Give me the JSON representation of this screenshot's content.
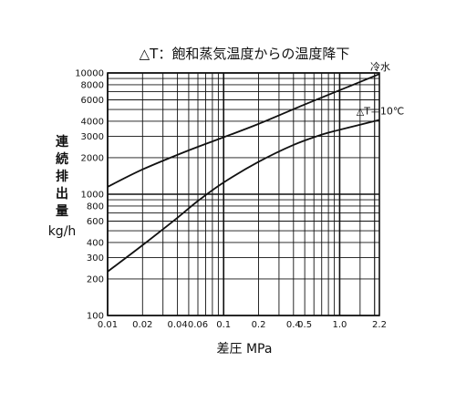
{
  "chart_data": {
    "type": "line",
    "title": "△T：飽和蒸気温度からの温度降下",
    "xlabel": "差圧 MPa",
    "ylabel_lines": [
      "連",
      "続",
      "排",
      "出",
      "量"
    ],
    "ylabel_unit": "kg/h",
    "x_scale": "log",
    "y_scale": "log",
    "xlim": [
      0.01,
      2.2
    ],
    "ylim": [
      100,
      10000
    ],
    "grid": true,
    "x_ticks": [
      {
        "value": 0.01,
        "label": "0.01"
      },
      {
        "value": 0.02,
        "label": "0.02"
      },
      {
        "value": 0.04,
        "label": "0.04"
      },
      {
        "value": 0.06,
        "label": "0.06"
      },
      {
        "value": 0.1,
        "label": "0.1"
      },
      {
        "value": 0.2,
        "label": "0.2"
      },
      {
        "value": 0.4,
        "label": "0.4"
      },
      {
        "value": 0.5,
        "label": "0.5"
      },
      {
        "value": 1.0,
        "label": "1.0"
      },
      {
        "value": 2.2,
        "label": "2.2"
      }
    ],
    "y_ticks": [
      {
        "value": 100,
        "label": "100"
      },
      {
        "value": 200,
        "label": "200"
      },
      {
        "value": 300,
        "label": "300"
      },
      {
        "value": 400,
        "label": "400"
      },
      {
        "value": 600,
        "label": "600"
      },
      {
        "value": 800,
        "label": "800"
      },
      {
        "value": 1000,
        "label": "1000"
      },
      {
        "value": 2000,
        "label": "2000"
      },
      {
        "value": 3000,
        "label": "3000"
      },
      {
        "value": 4000,
        "label": "4000"
      },
      {
        "value": 6000,
        "label": "6000"
      },
      {
        "value": 8000,
        "label": "8000"
      },
      {
        "value": 10000,
        "label": "10000"
      }
    ],
    "series": [
      {
        "name": "冷水",
        "points": [
          [
            0.01,
            1150
          ],
          [
            0.02,
            1600
          ],
          [
            0.05,
            2300
          ],
          [
            0.1,
            2950
          ],
          [
            0.2,
            3800
          ],
          [
            0.5,
            5500
          ],
          [
            1.0,
            7200
          ],
          [
            2.2,
            9800
          ]
        ]
      },
      {
        "name": "△T＝10℃",
        "points": [
          [
            0.01,
            230
          ],
          [
            0.02,
            380
          ],
          [
            0.04,
            640
          ],
          [
            0.06,
            880
          ],
          [
            0.1,
            1250
          ],
          [
            0.2,
            1850
          ],
          [
            0.4,
            2550
          ],
          [
            0.7,
            3100
          ],
          [
            1.0,
            3400
          ],
          [
            2.2,
            4100
          ]
        ]
      }
    ]
  }
}
